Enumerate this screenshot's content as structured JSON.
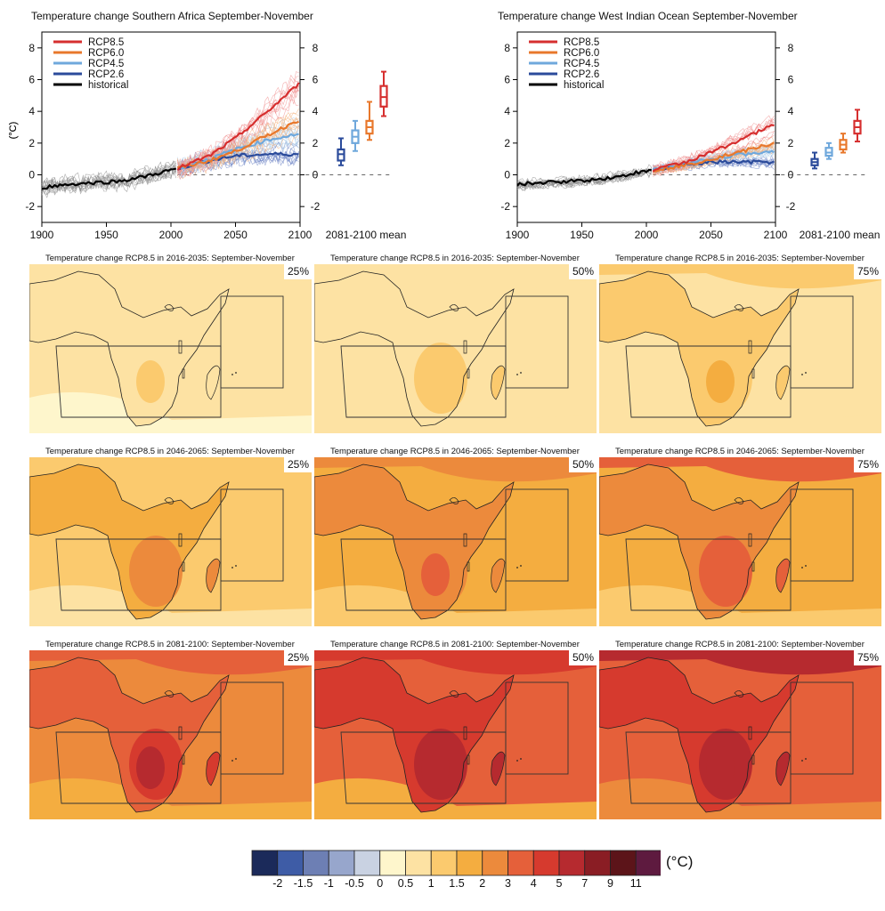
{
  "timeseries": [
    {
      "id": "sa",
      "title": "Temperature change Southern Africa September-November",
      "ylabel": "(°C)",
      "yticks": [
        -2,
        0,
        2,
        4,
        6,
        8
      ],
      "xticks": [
        1900,
        1950,
        2000,
        2050,
        2100
      ],
      "mean_label": "2081-2100 mean",
      "legend": [
        {
          "name": "RCP8.5",
          "color": "#d62f2f"
        },
        {
          "name": "RCP6.0",
          "color": "#e8782c"
        },
        {
          "name": "RCP4.5",
          "color": "#6fa8dc"
        },
        {
          "name": "RCP2.6",
          "color": "#2b4b9b"
        },
        {
          "name": "historical",
          "color": "#000000"
        }
      ]
    },
    {
      "id": "wio",
      "title": "Temperature change West Indian Ocean September-November",
      "ylabel": "(°C)",
      "yticks": [
        -2,
        0,
        2,
        4,
        6,
        8
      ],
      "xticks": [
        1900,
        1950,
        2000,
        2050,
        2100
      ],
      "mean_label": "2081-2100 mean",
      "legend": [
        {
          "name": "RCP8.5",
          "color": "#d62f2f"
        },
        {
          "name": "RCP6.0",
          "color": "#e8782c"
        },
        {
          "name": "RCP4.5",
          "color": "#6fa8dc"
        },
        {
          "name": "RCP2.6",
          "color": "#2b4b9b"
        },
        {
          "name": "historical",
          "color": "#000000"
        }
      ]
    }
  ],
  "maps": [
    {
      "title": "Temperature change RCP8.5 in 2016-2035: September-November",
      "pct": "25%",
      "level": 0
    },
    {
      "title": "Temperature change RCP8.5 in 2016-2035: September-November",
      "pct": "50%",
      "level": 1
    },
    {
      "title": "Temperature change RCP8.5 in 2016-2035: September-November",
      "pct": "75%",
      "level": 2
    },
    {
      "title": "Temperature change RCP8.5 in 2046-2065: September-November",
      "pct": "25%",
      "level": 3
    },
    {
      "title": "Temperature change RCP8.5 in 2046-2065: September-November",
      "pct": "50%",
      "level": 4
    },
    {
      "title": "Temperature change RCP8.5 in 2046-2065: September-November",
      "pct": "75%",
      "level": 5
    },
    {
      "title": "Temperature change RCP8.5 in 2081-2100: September-November",
      "pct": "25%",
      "level": 6
    },
    {
      "title": "Temperature change RCP8.5 in 2081-2100: September-November",
      "pct": "50%",
      "level": 7
    },
    {
      "title": "Temperature change RCP8.5 in 2081-2100: September-November",
      "pct": "75%",
      "level": 8
    }
  ],
  "colorbar": {
    "unit": "(°C)",
    "labels": [
      "-2",
      "-1.5",
      "-1",
      "-0.5",
      "0",
      "0.5",
      "1",
      "1.5",
      "2",
      "3",
      "4",
      "5",
      "7",
      "9",
      "11"
    ],
    "colors": [
      "#1b2a5a",
      "#3e5ca6",
      "#6d7fb4",
      "#97a6cc",
      "#c9d2e2",
      "#fef6cc",
      "#fde2a3",
      "#fbca6e",
      "#f4ad40",
      "#ec8a3c",
      "#e5603a",
      "#d63a2e",
      "#b62a2f",
      "#8a1d24",
      "#5c1419",
      "#5e1a3f"
    ]
  },
  "chart_data": [
    {
      "type": "line",
      "title": "Temperature change Southern Africa September-November",
      "ylabel": "(°C)",
      "xlim": [
        1900,
        2100
      ],
      "ylim": [
        -3,
        9
      ],
      "series": [
        {
          "name": "historical",
          "x": [
            1900,
            1920,
            1940,
            1960,
            1980,
            1990,
            2000,
            2005
          ],
          "values": [
            -0.8,
            -0.6,
            -0.5,
            -0.4,
            -0.1,
            0.1,
            0.3,
            0.4
          ]
        },
        {
          "name": "RCP2.6",
          "x": [
            2005,
            2030,
            2050,
            2075,
            2100
          ],
          "values": [
            0.4,
            0.9,
            1.2,
            1.3,
            1.3
          ]
        },
        {
          "name": "RCP4.5",
          "x": [
            2005,
            2030,
            2050,
            2075,
            2100
          ],
          "values": [
            0.4,
            1.0,
            1.6,
            2.2,
            2.6
          ]
        },
        {
          "name": "RCP6.0",
          "x": [
            2005,
            2030,
            2050,
            2075,
            2100
          ],
          "values": [
            0.4,
            0.9,
            1.5,
            2.5,
            3.5
          ]
        },
        {
          "name": "RCP8.5",
          "x": [
            2005,
            2030,
            2050,
            2075,
            2100
          ],
          "values": [
            0.4,
            1.2,
            2.3,
            4.0,
            5.8
          ]
        }
      ],
      "boxes_2081_2100": [
        {
          "name": "RCP2.6",
          "min": 0.6,
          "q1": 0.9,
          "median": 1.3,
          "q3": 1.6,
          "max": 2.3
        },
        {
          "name": "RCP4.5",
          "min": 1.5,
          "q1": 2.0,
          "median": 2.4,
          "q3": 2.8,
          "max": 3.4
        },
        {
          "name": "RCP6.0",
          "min": 2.2,
          "q1": 2.6,
          "median": 3.0,
          "q3": 3.4,
          "max": 4.6
        },
        {
          "name": "RCP8.5",
          "min": 3.7,
          "q1": 4.3,
          "median": 4.9,
          "q3": 5.6,
          "max": 6.5
        }
      ]
    },
    {
      "type": "line",
      "title": "Temperature change West Indian Ocean September-November",
      "ylabel": "(°C)",
      "xlim": [
        1900,
        2100
      ],
      "ylim": [
        -3,
        9
      ],
      "series": [
        {
          "name": "historical",
          "x": [
            1900,
            1920,
            1940,
            1960,
            1980,
            1990,
            2000,
            2005
          ],
          "values": [
            -0.6,
            -0.5,
            -0.4,
            -0.3,
            -0.1,
            0.1,
            0.2,
            0.3
          ]
        },
        {
          "name": "RCP2.6",
          "x": [
            2005,
            2030,
            2050,
            2075,
            2100
          ],
          "values": [
            0.3,
            0.6,
            0.8,
            0.8,
            0.8
          ]
        },
        {
          "name": "RCP4.5",
          "x": [
            2005,
            2030,
            2050,
            2075,
            2100
          ],
          "values": [
            0.3,
            0.7,
            1.0,
            1.3,
            1.5
          ]
        },
        {
          "name": "RCP6.0",
          "x": [
            2005,
            2030,
            2050,
            2075,
            2100
          ],
          "values": [
            0.3,
            0.6,
            1.0,
            1.5,
            2.0
          ]
        },
        {
          "name": "RCP8.5",
          "x": [
            2005,
            2030,
            2050,
            2075,
            2100
          ],
          "values": [
            0.3,
            0.8,
            1.4,
            2.3,
            3.2
          ]
        }
      ],
      "boxes_2081_2100": [
        {
          "name": "RCP2.6",
          "min": 0.4,
          "q1": 0.6,
          "median": 0.8,
          "q3": 1.0,
          "max": 1.4
        },
        {
          "name": "RCP4.5",
          "min": 1.0,
          "q1": 1.2,
          "median": 1.4,
          "q3": 1.7,
          "max": 2.0
        },
        {
          "name": "RCP6.0",
          "min": 1.4,
          "q1": 1.6,
          "median": 1.9,
          "q3": 2.2,
          "max": 2.6
        },
        {
          "name": "RCP8.5",
          "min": 2.1,
          "q1": 2.6,
          "median": 3.0,
          "q3": 3.4,
          "max": 4.1
        }
      ]
    },
    {
      "type": "heatmap",
      "title": "Temperature change RCP8.5 (°C), September-November",
      "periods": [
        "2016-2035",
        "2046-2065",
        "2081-2100"
      ],
      "percentiles": [
        "25%",
        "50%",
        "75%"
      ],
      "approx_max_land_change": [
        [
          1.5,
          2,
          2
        ],
        [
          3,
          4,
          4
        ],
        [
          5,
          5,
          7
        ]
      ],
      "approx_ocean_change": [
        [
          1,
          1,
          1.5
        ],
        [
          1.5,
          2,
          2
        ],
        [
          3,
          3,
          4
        ]
      ]
    }
  ]
}
